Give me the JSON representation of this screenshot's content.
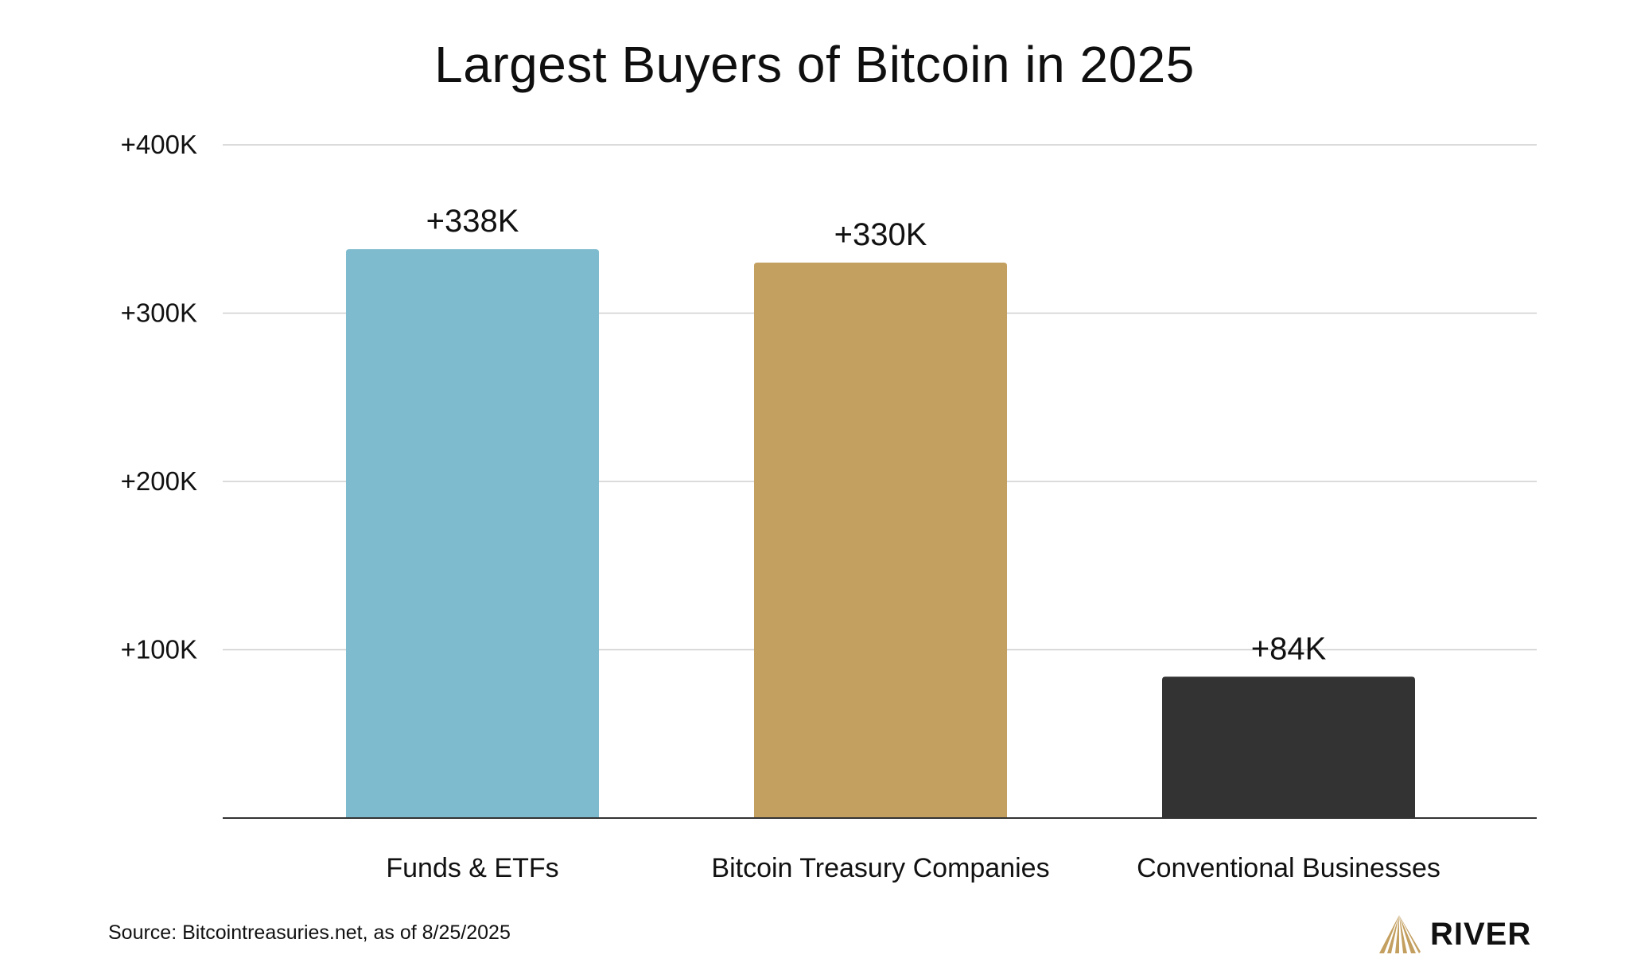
{
  "chart_data": {
    "type": "bar",
    "title": "Largest Buyers of Bitcoin in 2025",
    "xlabel": "",
    "ylabel": "",
    "categories": [
      "Funds & ETFs",
      "Bitcoin Treasury Companies",
      "Conventional Businesses"
    ],
    "values": [
      338000,
      330000,
      84000
    ],
    "data_labels": [
      "+338K",
      "+330K",
      "+84K"
    ],
    "bar_colors": [
      "#7fbbce",
      "#c39f60",
      "#333333"
    ],
    "ylim": [
      0,
      400000
    ],
    "yticks": [
      100000,
      200000,
      300000,
      400000
    ],
    "ytick_labels": [
      "+100K",
      "+200K",
      "+300K",
      "+400K"
    ],
    "grid": true,
    "legend": "none"
  },
  "footer": {
    "source": "Source: Bitcointreasuries.net, as of 8/25/2025"
  },
  "logo": {
    "text": "RIVER",
    "icon": "river-mountain-icon",
    "color": "#c39f60"
  }
}
